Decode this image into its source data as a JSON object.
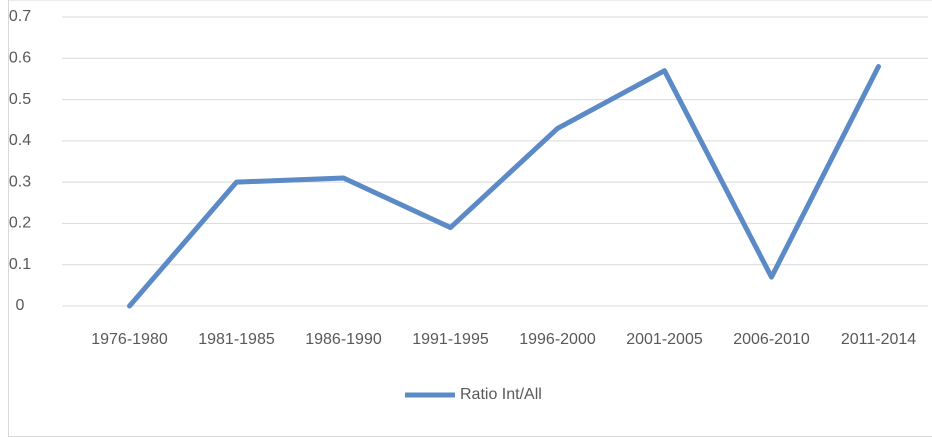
{
  "chart_data": {
    "type": "line",
    "categories": [
      "1976-1980",
      "1981-1985",
      "1986-1990",
      "1991-1995",
      "1996-2000",
      "2001-2005",
      "2006-2010",
      "2011-2014"
    ],
    "series": [
      {
        "name": "Ratio Int/All",
        "color": "#5b8ac6",
        "values": [
          0,
          0.3,
          0.31,
          0.19,
          0.43,
          0.57,
          0.07,
          0.58
        ]
      }
    ],
    "ylim": [
      0,
      0.7
    ],
    "yticks": [
      0,
      0.1,
      0.2,
      0.3,
      0.4,
      0.5,
      0.6,
      0.7
    ],
    "grid": true,
    "legend": "bottom"
  }
}
